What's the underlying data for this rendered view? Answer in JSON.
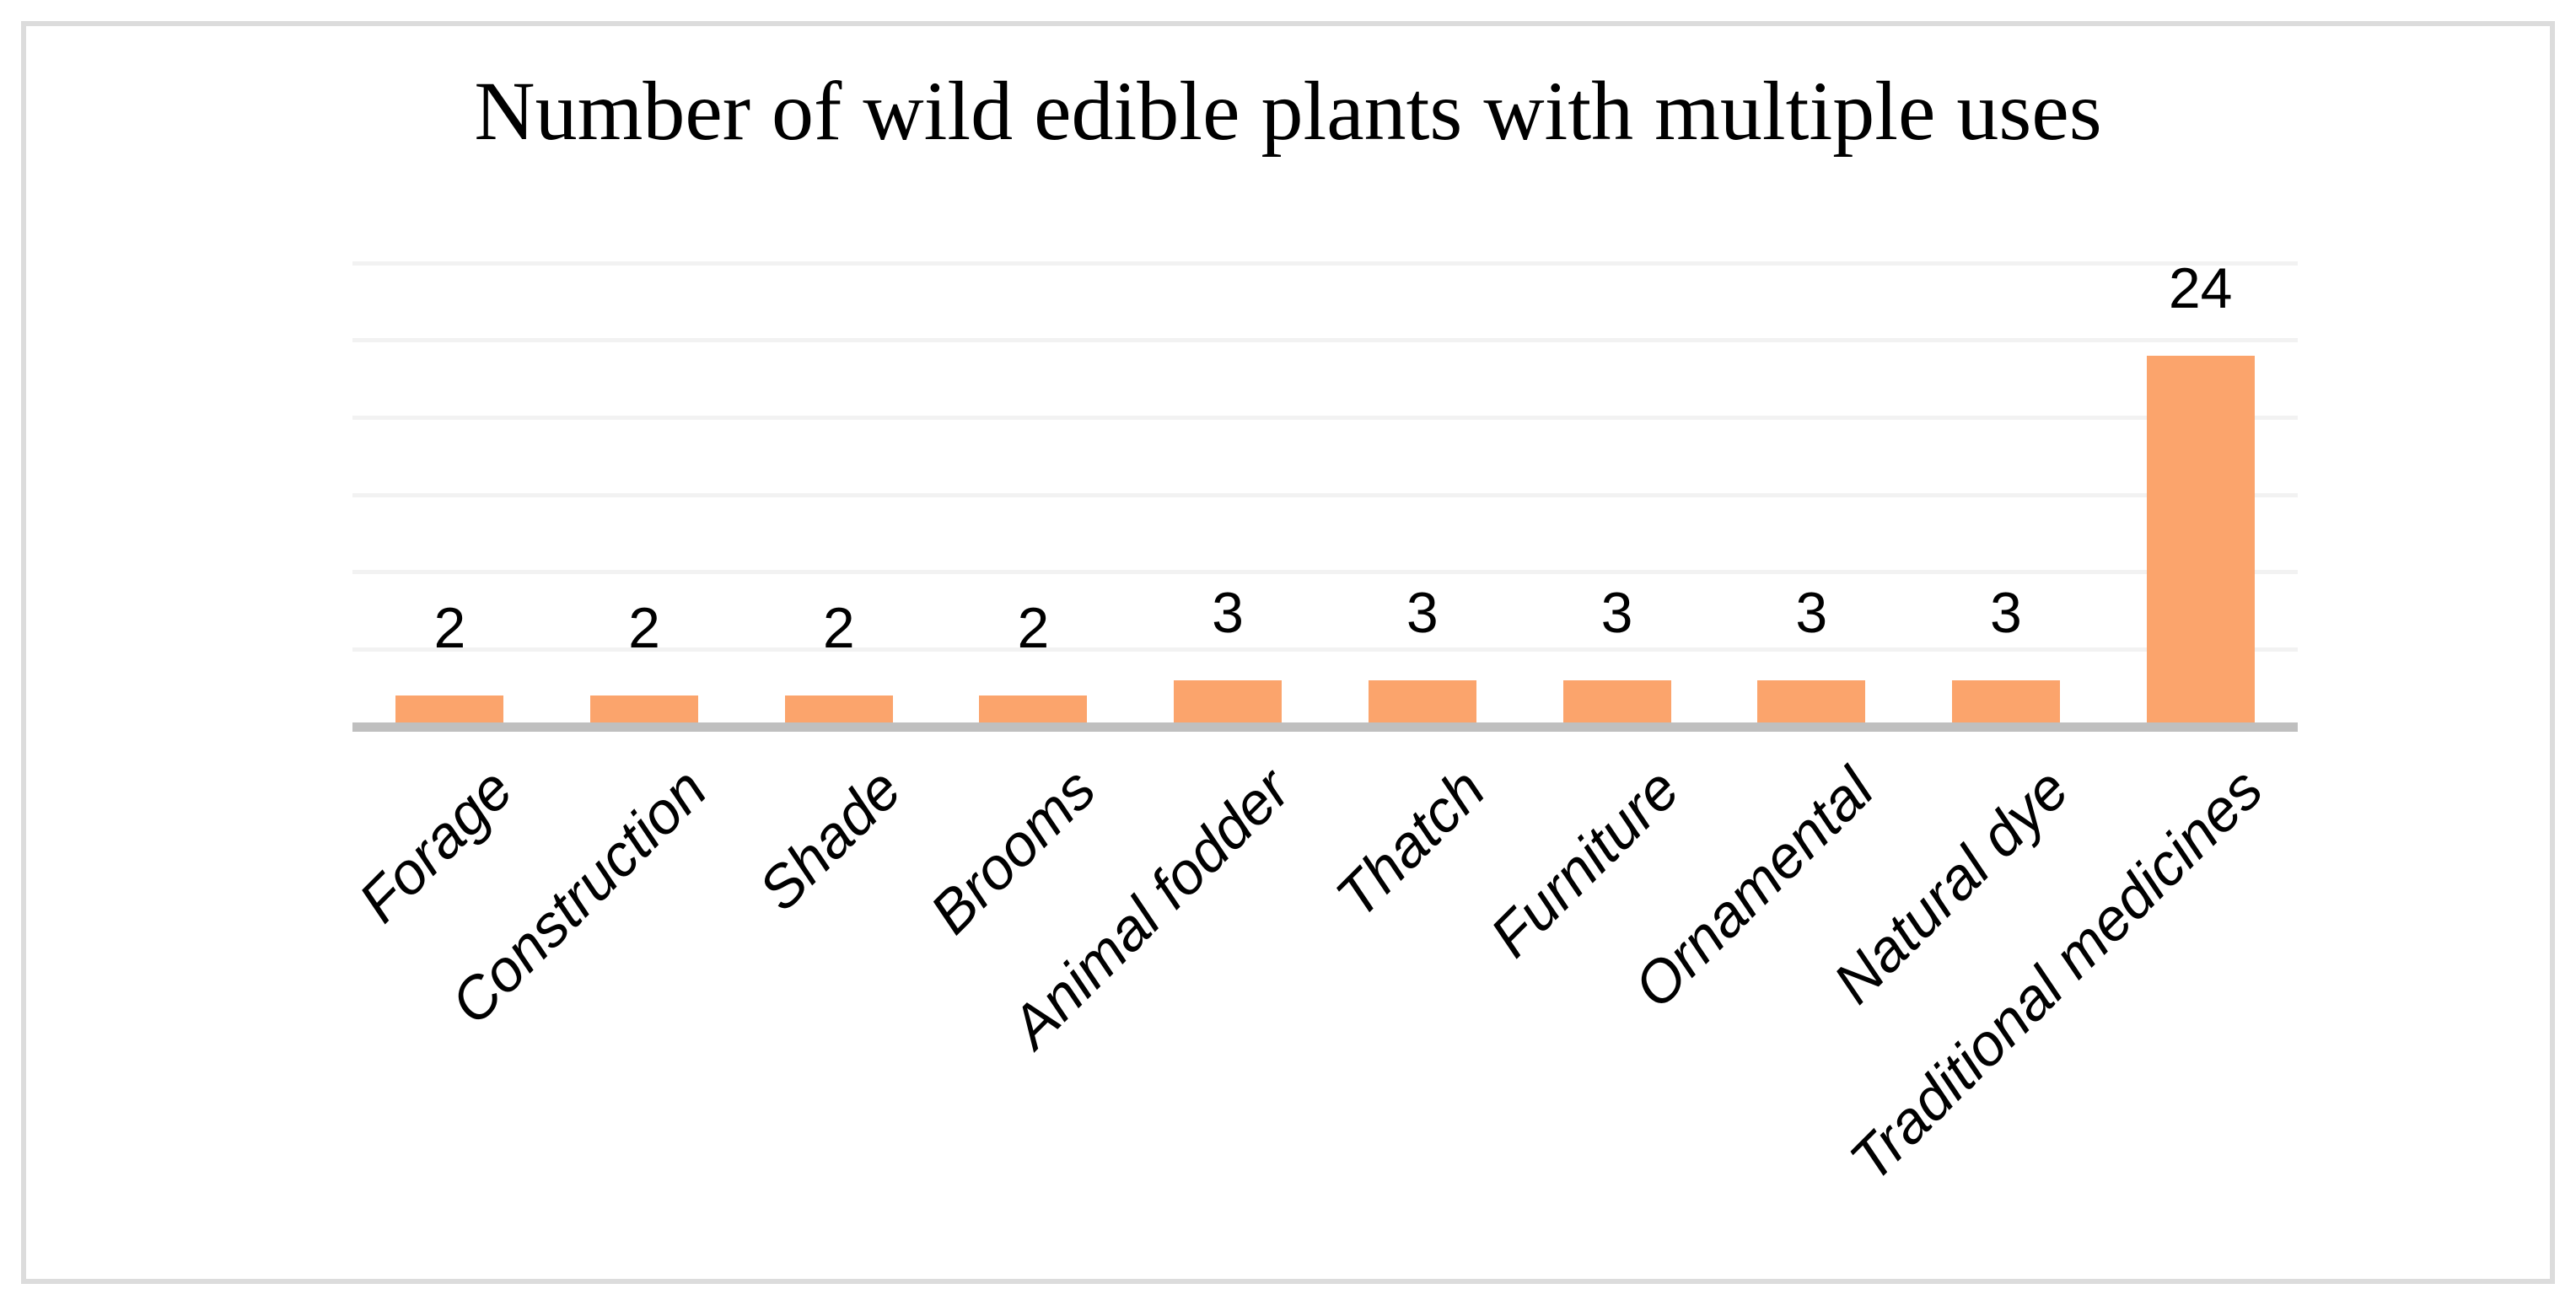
{
  "chart_data": {
    "type": "bar",
    "title": "Number of wild edible plants with multiple uses",
    "categories": [
      "Forage",
      "Construction",
      "Shade",
      "Brooms",
      "Animal fodder",
      "Thatch",
      "Furniture",
      "Ornamental",
      "Natural dye",
      "Traditional medicines"
    ],
    "values": [
      2,
      2,
      2,
      2,
      3,
      3,
      3,
      3,
      3,
      24
    ],
    "xlabel": "",
    "ylabel": "",
    "ylim": [
      0,
      30
    ],
    "gridline_step": 5,
    "grid": true,
    "legend_position": "none",
    "data_labels_visible": true,
    "bar_color": "#FBA46C"
  },
  "style": {
    "gridline_color": "#F2F2F2",
    "axis_line_color": "#BFBFBF",
    "frame_border_color": "#DCDCDC",
    "text_color": "#000000",
    "background_color": "#FFFFFF"
  }
}
